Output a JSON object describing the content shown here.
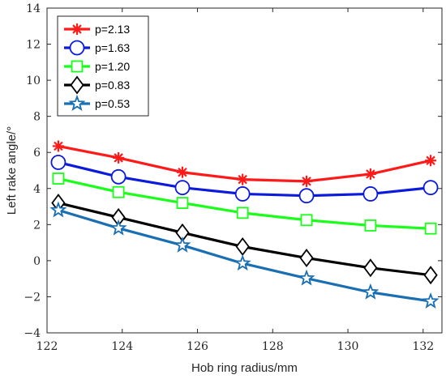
{
  "chart_data": {
    "type": "line",
    "xlabel": "Hob ring radius/mm",
    "ylabel": "Left rake angle/°",
    "xlim": [
      122,
      132.5
    ],
    "ylim": [
      -4,
      14
    ],
    "xticks": [
      122,
      124,
      126,
      128,
      130,
      132
    ],
    "yticks": [
      -4,
      -2,
      0,
      2,
      4,
      6,
      8,
      10,
      12,
      14
    ],
    "x": [
      122.3,
      123.9,
      125.6,
      127.2,
      128.9,
      130.6,
      132.2
    ],
    "grid": false,
    "legend_position": "top-left",
    "series": [
      {
        "name": "p=2.13",
        "color": "#ff1a1a",
        "marker": "asterisk",
        "values": [
          6.35,
          5.7,
          4.9,
          4.5,
          4.4,
          4.8,
          5.55
        ]
      },
      {
        "name": "p=1.63",
        "color": "#0b1adb",
        "marker": "circle",
        "values": [
          5.45,
          4.65,
          4.05,
          3.7,
          3.6,
          3.7,
          4.05
        ]
      },
      {
        "name": "p=1.20",
        "color": "#1aff1a",
        "marker": "square",
        "values": [
          4.55,
          3.8,
          3.2,
          2.65,
          2.25,
          1.95,
          1.78
        ]
      },
      {
        "name": "p=0.83",
        "color": "#000000",
        "marker": "diamond",
        "values": [
          3.2,
          2.4,
          1.55,
          0.78,
          0.15,
          -0.4,
          -0.8
        ]
      },
      {
        "name": "p=0.53",
        "color": "#1a6fb3",
        "marker": "star",
        "values": [
          2.8,
          1.8,
          0.85,
          -0.15,
          -0.98,
          -1.75,
          -2.25
        ]
      }
    ]
  }
}
